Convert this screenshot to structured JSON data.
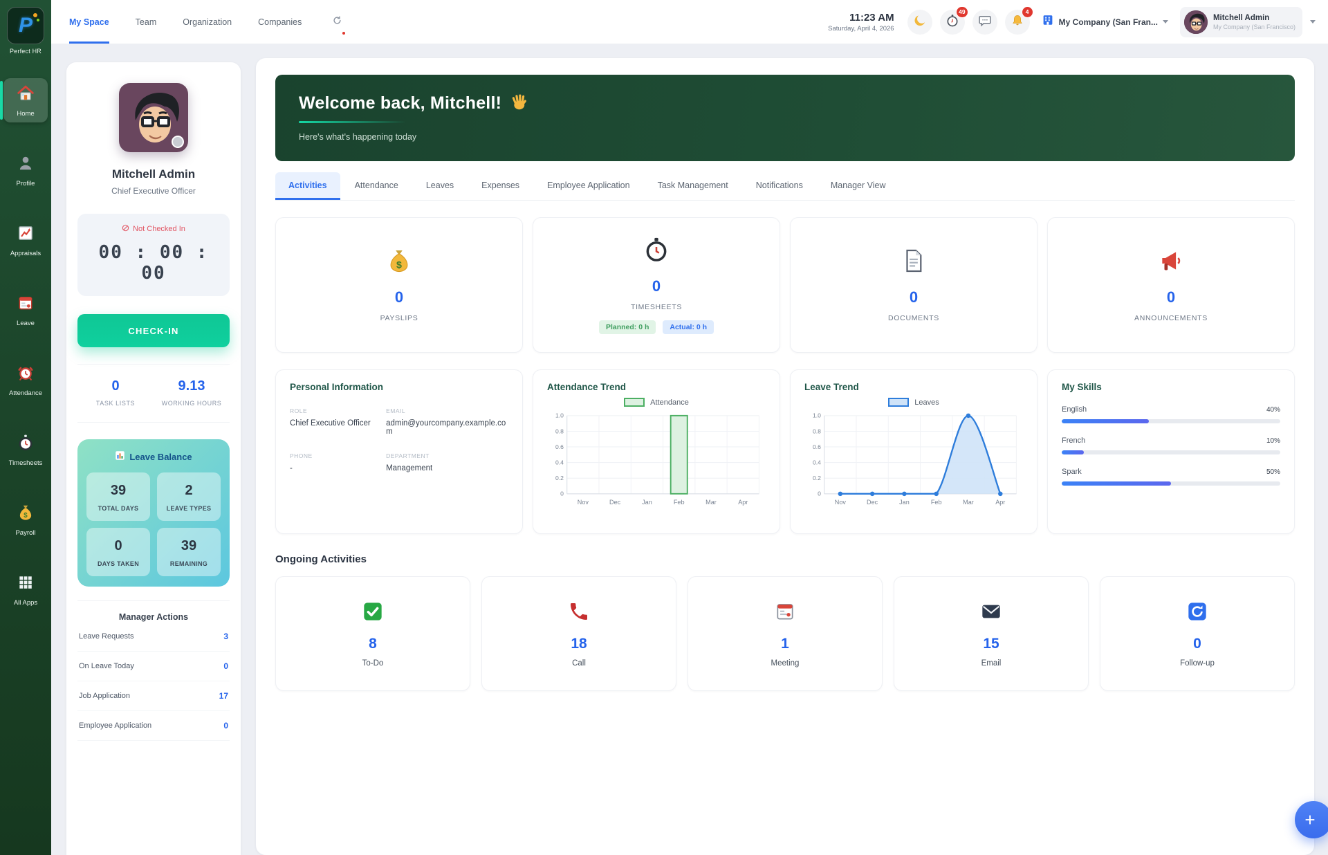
{
  "app": {
    "name": "Perfect HR"
  },
  "topbar": {
    "nav": [
      {
        "label": "My Space"
      },
      {
        "label": "Team"
      },
      {
        "label": "Organization"
      },
      {
        "label": "Companies"
      }
    ],
    "active_nav": "My Space",
    "time": "11:23 AM",
    "date": "Saturday, April 4, 2026",
    "timer_badge": "49",
    "notifications_badge": "4",
    "company_selector_label": "My Company (San Fran...",
    "user_name": "Mitchell Admin",
    "user_company": "My Company (San Francisco)"
  },
  "sidebar": {
    "items": [
      {
        "label": "Home",
        "icon": "home-icon",
        "active": true
      },
      {
        "label": "Profile",
        "icon": "person-icon"
      },
      {
        "label": "Appraisals",
        "icon": "chart-increasing-icon"
      },
      {
        "label": "Leave",
        "icon": "calendar-icon"
      },
      {
        "label": "Attendance",
        "icon": "alarm-clock-icon"
      },
      {
        "label": "Timesheets",
        "icon": "stopwatch-icon"
      },
      {
        "label": "Payroll",
        "icon": "money-bag-icon"
      },
      {
        "label": "All Apps",
        "icon": "grid-icon"
      }
    ]
  },
  "profile_panel": {
    "name": "Mitchell Admin",
    "role": "Chief Executive Officer",
    "checkin_status": "Not Checked In",
    "timer": "00 : 00 : 00",
    "checkin_button": "CHECK-IN",
    "task_lists_value": "0",
    "task_lists_label": "TASK LISTS",
    "working_hours_value": "9.13",
    "working_hours_label": "WORKING HOURS",
    "leave_balance": {
      "title": "Leave Balance",
      "tiles": [
        {
          "value": "39",
          "label": "TOTAL DAYS"
        },
        {
          "value": "2",
          "label": "LEAVE TYPES"
        },
        {
          "value": "0",
          "label": "DAYS TAKEN"
        },
        {
          "value": "39",
          "label": "REMAINING"
        }
      ]
    },
    "manager_actions": {
      "title": "Manager Actions",
      "rows": [
        {
          "label": "Leave Requests",
          "value": "3"
        },
        {
          "label": "On Leave Today",
          "value": "0"
        },
        {
          "label": "Job Application",
          "value": "17"
        },
        {
          "label": "Employee Application",
          "value": "0"
        }
      ]
    }
  },
  "main": {
    "welcome_title": "Welcome back, Mitchell!",
    "welcome_emoji": "waving-hand-icon",
    "welcome_subtitle": "Here's what's happening today",
    "tabs": [
      {
        "label": "Activities"
      },
      {
        "label": "Attendance"
      },
      {
        "label": "Leaves"
      },
      {
        "label": "Expenses"
      },
      {
        "label": "Employee Application"
      },
      {
        "label": "Task Management"
      },
      {
        "label": "Notifications"
      },
      {
        "label": "Manager View"
      }
    ],
    "active_tab": "Activities",
    "stat_cards": [
      {
        "icon": "money-bag-icon",
        "value": "0",
        "label": "PAYSLIPS"
      },
      {
        "icon": "stopwatch-icon",
        "value": "0",
        "label": "TIMESHEETS",
        "planned_badge": "Planned: 0 h",
        "actual_badge": "Actual: 0 h"
      },
      {
        "icon": "document-icon",
        "value": "0",
        "label": "DOCUMENTS"
      },
      {
        "icon": "megaphone-icon",
        "value": "0",
        "label": "ANNOUNCEMENTS"
      }
    ],
    "personal_info": {
      "title": "Personal Information",
      "fields": [
        {
          "label": "ROLE",
          "value": "Chief Executive Officer"
        },
        {
          "label": "EMAIL",
          "value": "admin@yourcompany.example.com"
        },
        {
          "label": "PHONE",
          "value": "-"
        },
        {
          "label": "DEPARTMENT",
          "value": "Management"
        }
      ]
    },
    "skills": {
      "title": "My Skills",
      "items": [
        {
          "name": "English",
          "percent": 40,
          "percent_label": "40%"
        },
        {
          "name": "French",
          "percent": 10,
          "percent_label": "10%"
        },
        {
          "name": "Spark",
          "percent": 50,
          "percent_label": "50%"
        }
      ]
    },
    "ongoing": {
      "title": "Ongoing Activities",
      "cards": [
        {
          "icon": "todo-check-icon",
          "value": "8",
          "label": "To-Do"
        },
        {
          "icon": "phone-icon",
          "value": "18",
          "label": "Call"
        },
        {
          "icon": "calendar-icon",
          "value": "1",
          "label": "Meeting"
        },
        {
          "icon": "email-icon",
          "value": "15",
          "label": "Email"
        },
        {
          "icon": "refresh-cycle-icon",
          "value": "0",
          "label": "Follow-up"
        }
      ]
    }
  },
  "chart_data": [
    {
      "id": "attendance_trend",
      "type": "bar",
      "title": "Attendance Trend",
      "legend": "Attendance",
      "categories": [
        "Nov",
        "Dec",
        "Jan",
        "Feb",
        "Mar",
        "Apr"
      ],
      "values": [
        0,
        0,
        0,
        1,
        0,
        0
      ],
      "ylim": [
        0,
        1
      ],
      "yticks": [
        "1.0",
        "0.8",
        "0.6",
        "0.4",
        "0.2",
        "0"
      ],
      "color": "#4caf63",
      "fill": "#ddf1e1",
      "grid": true,
      "legend_position": "top"
    },
    {
      "id": "leave_trend",
      "type": "area",
      "title": "Leave Trend",
      "legend": "Leaves",
      "categories": [
        "Nov",
        "Dec",
        "Jan",
        "Feb",
        "Mar",
        "Apr"
      ],
      "values": [
        0,
        0,
        0,
        0,
        1,
        0
      ],
      "ylim": [
        0,
        1
      ],
      "yticks": [
        "1.0",
        "0.8",
        "0.6",
        "0.4",
        "0.2",
        "0"
      ],
      "color": "#2e7ddb",
      "fill": "#cfe3f8",
      "grid": true,
      "legend_position": "top"
    }
  ],
  "colors": {
    "accent_blue": "#2563eb",
    "nav_blue": "#2f6fed",
    "brand_green": "#1e4a33",
    "teal": "#12c79a",
    "badge_green": "#3f9e5f",
    "alert_red": "#e25563",
    "bar_green": "#4caf63",
    "line_blue": "#2e7ddb"
  },
  "fab": {
    "label": "+"
  }
}
